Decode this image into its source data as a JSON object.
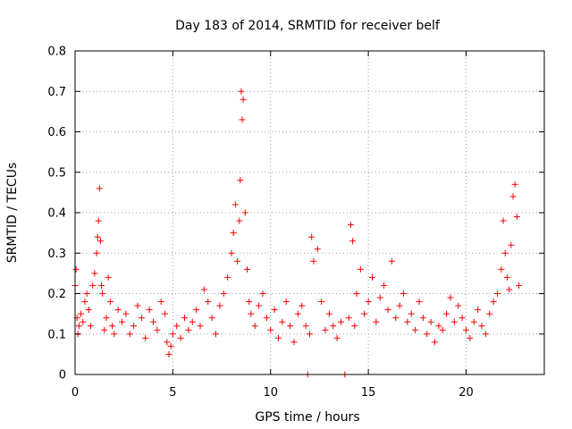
{
  "chart_data": {
    "type": "scatter",
    "title": "Day 183 of 2014, SRMTID for receiver belf",
    "xlabel": "GPS time / hours",
    "ylabel": "SRMTID / TECUs",
    "xlim": [
      0,
      24
    ],
    "ylim": [
      0,
      0.8
    ],
    "x_ticks": [
      0,
      5,
      10,
      15,
      20
    ],
    "y_ticks": [
      0,
      0.1,
      0.2,
      0.3,
      0.4,
      0.5,
      0.6,
      0.7,
      0.8
    ],
    "x_tick_labels": [
      "0",
      "5",
      "10",
      "15",
      "20"
    ],
    "y_tick_labels": [
      "0",
      "0.1",
      "0.2",
      "0.3",
      "0.4",
      "0.5",
      "0.6",
      "0.7",
      "0.8"
    ],
    "grid": true,
    "marker": "+",
    "marker_color": "#ff0000",
    "series": [
      {
        "name": "SRMTID",
        "x": [
          0.0,
          0.05,
          0.1,
          0.15,
          0.2,
          0.3,
          0.4,
          0.5,
          0.6,
          0.7,
          0.8,
          0.9,
          1.0,
          1.1,
          1.15,
          1.2,
          1.25,
          1.3,
          1.35,
          1.4,
          1.5,
          1.6,
          1.7,
          1.8,
          1.9,
          2.0,
          2.2,
          2.4,
          2.6,
          2.8,
          3.0,
          3.2,
          3.4,
          3.6,
          3.8,
          4.0,
          4.2,
          4.4,
          4.6,
          4.7,
          4.8,
          4.9,
          5.0,
          5.2,
          5.4,
          5.6,
          5.8,
          6.0,
          6.2,
          6.4,
          6.6,
          6.8,
          7.0,
          7.2,
          7.4,
          7.6,
          7.8,
          8.0,
          8.1,
          8.2,
          8.3,
          8.4,
          8.45,
          8.5,
          8.55,
          8.6,
          8.7,
          8.8,
          8.9,
          9.0,
          9.2,
          9.4,
          9.6,
          9.8,
          10.0,
          10.2,
          10.4,
          10.6,
          10.8,
          11.0,
          11.2,
          11.4,
          11.6,
          11.8,
          11.9,
          12.0,
          12.1,
          12.2,
          12.4,
          12.6,
          12.8,
          13.0,
          13.2,
          13.4,
          13.6,
          13.8,
          14.0,
          14.1,
          14.2,
          14.3,
          14.4,
          14.6,
          14.8,
          15.0,
          15.2,
          15.4,
          15.6,
          15.8,
          16.0,
          16.2,
          16.4,
          16.6,
          16.8,
          17.0,
          17.2,
          17.4,
          17.6,
          17.8,
          18.0,
          18.2,
          18.4,
          18.6,
          18.8,
          19.0,
          19.2,
          19.4,
          19.6,
          19.8,
          20.0,
          20.2,
          20.4,
          20.6,
          20.8,
          21.0,
          21.2,
          21.4,
          21.6,
          21.8,
          21.9,
          22.0,
          22.1,
          22.2,
          22.3,
          22.4,
          22.5,
          22.6,
          22.7
        ],
        "y": [
          0.22,
          0.26,
          0.14,
          0.1,
          0.12,
          0.15,
          0.13,
          0.18,
          0.2,
          0.16,
          0.12,
          0.22,
          0.25,
          0.3,
          0.34,
          0.38,
          0.46,
          0.33,
          0.22,
          0.2,
          0.11,
          0.14,
          0.24,
          0.18,
          0.12,
          0.1,
          0.16,
          0.13,
          0.15,
          0.1,
          0.12,
          0.17,
          0.14,
          0.09,
          0.16,
          0.13,
          0.11,
          0.18,
          0.15,
          0.08,
          0.05,
          0.07,
          0.1,
          0.12,
          0.09,
          0.14,
          0.11,
          0.13,
          0.16,
          0.12,
          0.21,
          0.18,
          0.14,
          0.1,
          0.17,
          0.2,
          0.24,
          0.3,
          0.35,
          0.42,
          0.28,
          0.38,
          0.48,
          0.7,
          0.63,
          0.68,
          0.4,
          0.26,
          0.18,
          0.15,
          0.12,
          0.17,
          0.2,
          0.14,
          0.11,
          0.16,
          0.09,
          0.13,
          0.18,
          0.12,
          0.08,
          0.15,
          0.17,
          0.12,
          0.0,
          0.1,
          0.34,
          0.28,
          0.31,
          0.18,
          0.11,
          0.15,
          0.12,
          0.09,
          0.13,
          0.0,
          0.14,
          0.37,
          0.33,
          0.12,
          0.2,
          0.26,
          0.15,
          0.18,
          0.24,
          0.13,
          0.19,
          0.22,
          0.16,
          0.28,
          0.14,
          0.17,
          0.2,
          0.13,
          0.15,
          0.11,
          0.18,
          0.14,
          0.1,
          0.13,
          0.08,
          0.12,
          0.11,
          0.15,
          0.19,
          0.13,
          0.17,
          0.14,
          0.11,
          0.09,
          0.13,
          0.16,
          0.12,
          0.1,
          0.15,
          0.18,
          0.2,
          0.26,
          0.38,
          0.3,
          0.24,
          0.21,
          0.32,
          0.44,
          0.47,
          0.39,
          0.22
        ]
      }
    ]
  }
}
